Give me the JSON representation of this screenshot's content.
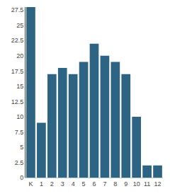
{
  "chart_data": {
    "type": "bar",
    "categories": [
      "K",
      "1",
      "2",
      "3",
      "4",
      "5",
      "6",
      "7",
      "8",
      "9",
      "10",
      "11",
      "12"
    ],
    "values": [
      28,
      9,
      17,
      18,
      17,
      19,
      22,
      20,
      19,
      17,
      10,
      2,
      2
    ],
    "color": "#2d6383",
    "ylim": [
      0,
      28
    ],
    "yticks": [
      0,
      2.5,
      5,
      7.5,
      10,
      12.5,
      15,
      17.5,
      20,
      22.5,
      25,
      27.5
    ],
    "grid": false
  }
}
